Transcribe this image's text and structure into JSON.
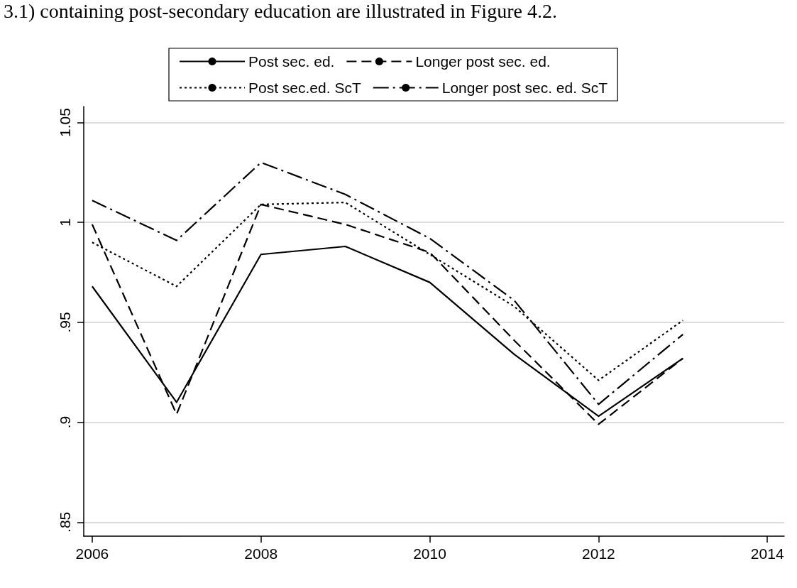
{
  "chart_data": {
    "type": "line",
    "annotations": [
      "3.1) containing post-secondary education are illustrated in Figure 4.2."
    ],
    "x": [
      2006,
      2007,
      2008,
      2009,
      2010,
      2011,
      2012,
      2013
    ],
    "series": [
      {
        "name": "Post sec. ed.",
        "color": "#000000",
        "line_style": "solid",
        "values": [
          0.968,
          0.91,
          0.984,
          0.988,
          0.97,
          0.934,
          0.903,
          0.932
        ]
      },
      {
        "name": "Longer post sec. ed.",
        "color": "#000000",
        "line_style": "dashed",
        "values": [
          0.999,
          0.904,
          1.009,
          0.999,
          0.985,
          0.941,
          0.899,
          0.932
        ]
      },
      {
        "name": "Post sec.ed. ScT",
        "color": "#000000",
        "line_style": "dotted",
        "values": [
          0.99,
          0.968,
          1.009,
          1.01,
          0.984,
          0.958,
          0.921,
          0.951
        ]
      },
      {
        "name": "Longer post sec. ed. ScT",
        "color": "#000000",
        "line_style": "dashdot",
        "values": [
          1.011,
          0.991,
          1.03,
          1.014,
          0.992,
          0.961,
          0.909,
          0.944
        ]
      }
    ],
    "xlim": [
      2005.9,
      2014.2
    ],
    "xticks": [
      2006,
      2008,
      2010,
      2012,
      2014
    ],
    "ylim": [
      0.843,
      1.058
    ],
    "yticks": [
      {
        "value": 0.85,
        "label": ".85"
      },
      {
        "value": 0.9,
        "label": ".9"
      },
      {
        "value": 0.95,
        "label": ".95"
      },
      {
        "value": 1,
        "label": "1"
      },
      {
        "value": 1.05,
        "label": "1.05"
      }
    ],
    "grid": "y",
    "legend": "top",
    "marker": "none"
  }
}
